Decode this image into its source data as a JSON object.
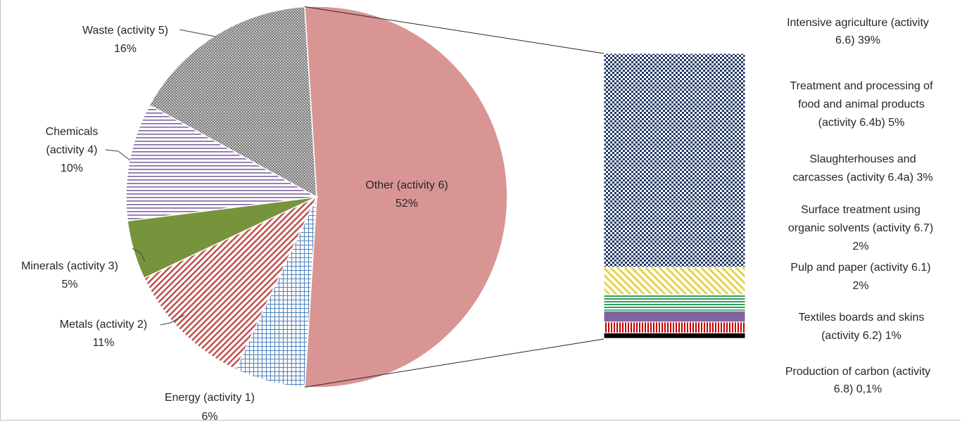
{
  "chart_data": {
    "type": "pie",
    "subtype": "bar-of-pie",
    "pie": {
      "slices": [
        {
          "name": "Other (activity 6)",
          "value": 52,
          "label": "52%",
          "color": "#d99594",
          "pattern": "solid"
        },
        {
          "name": "Energy (activity 1)",
          "value": 6,
          "label": "6%",
          "color": "#4f81bd",
          "pattern": "grid"
        },
        {
          "name": "Metals (activity 2)",
          "value": 11,
          "label": "11%",
          "color": "#c0504d",
          "pattern": "diagonal-stripes"
        },
        {
          "name": "Minerals (activity 3)",
          "value": 5,
          "label": "5%",
          "color": "#77933c",
          "pattern": "solid"
        },
        {
          "name": "Chemicals (activity 4)",
          "value": 10,
          "label": "10%",
          "color": "#8064a2",
          "pattern": "horizontal-stripes"
        },
        {
          "name": "Waste (activity 5)",
          "value": 16,
          "label": "16%",
          "color": "#7f7f7f",
          "pattern": "dotted"
        }
      ]
    },
    "bar": {
      "segments": [
        {
          "name": "Intensive agriculture (activity 6.6)",
          "value": 39,
          "label": "39%",
          "color": "#1f3864",
          "pattern": "checker"
        },
        {
          "name": "Treatment and processing of food and animal products (activity 6.4b)",
          "value": 5,
          "label": "5%",
          "color": "#e5d44b",
          "pattern": "diagonal-stripes"
        },
        {
          "name": "Slaughterhouses and carcasses (activity 6.4a)",
          "value": 3,
          "label": "3%",
          "color": "#2e9e5b",
          "pattern": "horizontal-stripes"
        },
        {
          "name": "Surface treatment using organic solvents (activity 6.7)",
          "value": 2,
          "label": "2%",
          "color": "#8064a2",
          "pattern": "solid"
        },
        {
          "name": "Pulp and paper (activity 6.1)",
          "value": 2,
          "label": "2%",
          "color": "#c00000",
          "pattern": "vertical-stripes"
        },
        {
          "name": "Textiles boards and skins (activity 6.2)",
          "value": 1,
          "label": "1%",
          "color": "#000000",
          "pattern": "solid"
        },
        {
          "name": "Production of carbon (activity 6.8)",
          "value": 0.1,
          "label": "0,1%",
          "color": "#000000",
          "pattern": "solid"
        }
      ]
    },
    "labels": {
      "other": [
        "Other (activity 6)",
        "52%"
      ],
      "energy": [
        "Energy (activity 1)",
        "6%"
      ],
      "metals": [
        "Metals (activity 2)",
        "11%"
      ],
      "minerals": [
        "Minerals (activity 3)",
        "5%"
      ],
      "chemicals": [
        "Chemicals",
        "(activity 4)",
        "10%"
      ],
      "waste": [
        "Waste (activity 5)",
        "16%"
      ],
      "intensive": [
        "Intensive agriculture (activity",
        "6.6)  39%"
      ],
      "food": [
        "Treatment and processing of",
        "food and animal products",
        "(activity 6.4b)  5%"
      ],
      "slaughter": [
        "Slaughterhouses and",
        "carcasses (activity 6.4a)  3%"
      ],
      "surface": [
        "Surface treatment using",
        "organic solvents (activity 6.7)",
        "2%"
      ],
      "pulp": [
        "Pulp and paper (activity 6.1)",
        "2%"
      ],
      "textiles": [
        "Textiles boards and skins",
        "(activity 6.2)  1%"
      ],
      "carbon": [
        "Production of carbon (activity",
        "6.8)  0,1%"
      ]
    },
    "title": "",
    "legend": "none"
  }
}
